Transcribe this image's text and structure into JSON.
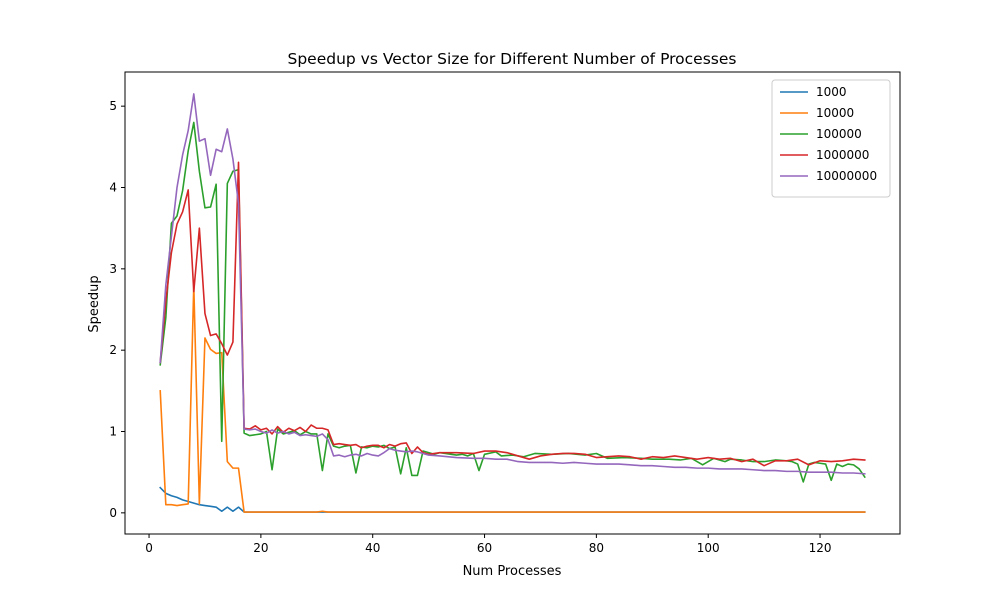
{
  "chart_data": {
    "type": "line",
    "title": "Speedup vs Vector Size for Different Number of Processes",
    "xlabel": "Num Processes",
    "ylabel": "Speedup",
    "xlim": [
      -4.3,
      134.3
    ],
    "ylim": [
      -0.26,
      5.42
    ],
    "xticks": [
      0,
      20,
      40,
      60,
      80,
      100,
      120
    ],
    "yticks": [
      0,
      1,
      2,
      3,
      4,
      5
    ],
    "grid": false,
    "legend_position": "top-right",
    "series": [
      {
        "name": "1000",
        "color": "#1f77b4",
        "points": [
          [
            2,
            0.31
          ],
          [
            3,
            0.24
          ],
          [
            4,
            0.21
          ],
          [
            5,
            0.19
          ],
          [
            6,
            0.16
          ],
          [
            7,
            0.14
          ],
          [
            8,
            0.12
          ],
          [
            9,
            0.1
          ],
          [
            10,
            0.09
          ],
          [
            11,
            0.08
          ],
          [
            12,
            0.07
          ],
          [
            13,
            0.02
          ],
          [
            14,
            0.07
          ],
          [
            15,
            0.02
          ],
          [
            16,
            0.07
          ],
          [
            17,
            0.01
          ],
          [
            18,
            0.01
          ],
          [
            128,
            0.01
          ]
        ]
      },
      {
        "name": "10000",
        "color": "#ff7f0e",
        "points": [
          [
            2,
            1.5
          ],
          [
            3,
            0.1
          ],
          [
            4,
            0.1
          ],
          [
            5,
            0.09
          ],
          [
            6,
            0.1
          ],
          [
            7,
            0.11
          ],
          [
            8,
            2.8
          ],
          [
            9,
            0.11
          ],
          [
            10,
            2.15
          ],
          [
            11,
            2.01
          ],
          [
            12,
            1.96
          ],
          [
            13,
            1.97
          ],
          [
            14,
            0.63
          ],
          [
            15,
            0.55
          ],
          [
            16,
            0.55
          ],
          [
            17,
            0.01
          ],
          [
            18,
            0.01
          ],
          [
            30,
            0.01
          ],
          [
            31,
            0.02
          ],
          [
            32,
            0.01
          ],
          [
            128,
            0.01
          ]
        ]
      },
      {
        "name": "100000",
        "color": "#2ca02c",
        "points": [
          [
            2,
            1.82
          ],
          [
            3,
            2.4
          ],
          [
            4,
            3.56
          ],
          [
            5,
            3.65
          ],
          [
            6,
            3.96
          ],
          [
            7,
            4.45
          ],
          [
            8,
            4.8
          ],
          [
            9,
            4.2
          ],
          [
            10,
            3.75
          ],
          [
            11,
            3.76
          ],
          [
            12,
            4.04
          ],
          [
            13,
            0.88
          ],
          [
            14,
            4.05
          ],
          [
            15,
            4.2
          ],
          [
            16,
            4.22
          ],
          [
            17,
            0.98
          ],
          [
            18,
            0.95
          ],
          [
            19,
            0.96
          ],
          [
            20,
            0.97
          ],
          [
            21,
            1.0
          ],
          [
            22,
            0.53
          ],
          [
            23,
            1.03
          ],
          [
            24,
            0.97
          ],
          [
            25,
            0.99
          ],
          [
            26,
            1.01
          ],
          [
            27,
            0.96
          ],
          [
            28,
            1.0
          ],
          [
            29,
            0.97
          ],
          [
            30,
            0.97
          ],
          [
            31,
            0.52
          ],
          [
            32,
            0.97
          ],
          [
            33,
            0.82
          ],
          [
            34,
            0.8
          ],
          [
            35,
            0.82
          ],
          [
            36,
            0.83
          ],
          [
            37,
            0.49
          ],
          [
            38,
            0.81
          ],
          [
            39,
            0.8
          ],
          [
            40,
            0.82
          ],
          [
            41,
            0.81
          ],
          [
            42,
            0.83
          ],
          [
            43,
            0.79
          ],
          [
            44,
            0.81
          ],
          [
            45,
            0.48
          ],
          [
            46,
            0.8
          ],
          [
            47,
            0.46
          ],
          [
            48,
            0.46
          ],
          [
            49,
            0.76
          ],
          [
            50,
            0.74
          ],
          [
            51,
            0.72
          ],
          [
            52,
            0.74
          ],
          [
            53,
            0.73
          ],
          [
            54,
            0.72
          ],
          [
            55,
            0.71
          ],
          [
            56,
            0.72
          ],
          [
            57,
            0.7
          ],
          [
            58,
            0.73
          ],
          [
            59,
            0.52
          ],
          [
            60,
            0.72
          ],
          [
            62,
            0.75
          ],
          [
            63,
            0.7
          ],
          [
            65,
            0.71
          ],
          [
            67,
            0.69
          ],
          [
            69,
            0.73
          ],
          [
            72,
            0.72
          ],
          [
            75,
            0.73
          ],
          [
            78,
            0.71
          ],
          [
            80,
            0.73
          ],
          [
            82,
            0.67
          ],
          [
            85,
            0.68
          ],
          [
            88,
            0.67
          ],
          [
            90,
            0.66
          ],
          [
            93,
            0.66
          ],
          [
            95,
            0.65
          ],
          [
            97,
            0.67
          ],
          [
            99,
            0.59
          ],
          [
            101,
            0.67
          ],
          [
            103,
            0.63
          ],
          [
            104,
            0.66
          ],
          [
            106,
            0.65
          ],
          [
            108,
            0.63
          ],
          [
            110,
            0.63
          ],
          [
            112,
            0.65
          ],
          [
            114,
            0.64
          ],
          [
            115,
            0.63
          ],
          [
            116,
            0.6
          ],
          [
            117,
            0.38
          ],
          [
            118,
            0.6
          ],
          [
            119,
            0.62
          ],
          [
            120,
            0.61
          ],
          [
            121,
            0.6
          ],
          [
            122,
            0.4
          ],
          [
            123,
            0.6
          ],
          [
            124,
            0.57
          ],
          [
            125,
            0.6
          ],
          [
            126,
            0.59
          ],
          [
            127,
            0.54
          ],
          [
            128,
            0.44
          ]
        ]
      },
      {
        "name": "1000000",
        "color": "#d62728",
        "points": [
          [
            2,
            1.85
          ],
          [
            3,
            2.6
          ],
          [
            4,
            3.2
          ],
          [
            5,
            3.55
          ],
          [
            6,
            3.7
          ],
          [
            7,
            3.97
          ],
          [
            8,
            2.72
          ],
          [
            9,
            3.5
          ],
          [
            10,
            2.45
          ],
          [
            11,
            2.18
          ],
          [
            12,
            2.2
          ],
          [
            13,
            2.08
          ],
          [
            14,
            1.94
          ],
          [
            15,
            2.1
          ],
          [
            16,
            4.31
          ],
          [
            17,
            1.04
          ],
          [
            18,
            1.03
          ],
          [
            19,
            1.07
          ],
          [
            20,
            1.02
          ],
          [
            21,
            1.04
          ],
          [
            22,
            0.97
          ],
          [
            23,
            1.06
          ],
          [
            24,
            0.99
          ],
          [
            25,
            1.04
          ],
          [
            26,
            1.01
          ],
          [
            27,
            1.05
          ],
          [
            28,
            1.0
          ],
          [
            29,
            1.08
          ],
          [
            30,
            1.04
          ],
          [
            31,
            1.04
          ],
          [
            32,
            1.02
          ],
          [
            33,
            0.84
          ],
          [
            34,
            0.85
          ],
          [
            35,
            0.84
          ],
          [
            36,
            0.83
          ],
          [
            37,
            0.84
          ],
          [
            38,
            0.8
          ],
          [
            39,
            0.82
          ],
          [
            40,
            0.83
          ],
          [
            41,
            0.83
          ],
          [
            42,
            0.8
          ],
          [
            43,
            0.84
          ],
          [
            44,
            0.82
          ],
          [
            45,
            0.85
          ],
          [
            46,
            0.86
          ],
          [
            47,
            0.73
          ],
          [
            48,
            0.81
          ],
          [
            49,
            0.74
          ],
          [
            50,
            0.72
          ],
          [
            52,
            0.74
          ],
          [
            55,
            0.74
          ],
          [
            58,
            0.73
          ],
          [
            60,
            0.76
          ],
          [
            62,
            0.76
          ],
          [
            64,
            0.74
          ],
          [
            66,
            0.7
          ],
          [
            68,
            0.66
          ],
          [
            70,
            0.7
          ],
          [
            72,
            0.72
          ],
          [
            74,
            0.73
          ],
          [
            76,
            0.73
          ],
          [
            78,
            0.72
          ],
          [
            80,
            0.68
          ],
          [
            82,
            0.69
          ],
          [
            84,
            0.7
          ],
          [
            86,
            0.69
          ],
          [
            88,
            0.66
          ],
          [
            90,
            0.69
          ],
          [
            92,
            0.68
          ],
          [
            94,
            0.7
          ],
          [
            96,
            0.68
          ],
          [
            98,
            0.66
          ],
          [
            100,
            0.68
          ],
          [
            102,
            0.66
          ],
          [
            104,
            0.67
          ],
          [
            106,
            0.63
          ],
          [
            108,
            0.66
          ],
          [
            110,
            0.58
          ],
          [
            112,
            0.64
          ],
          [
            114,
            0.64
          ],
          [
            116,
            0.66
          ],
          [
            118,
            0.59
          ],
          [
            120,
            0.64
          ],
          [
            122,
            0.63
          ],
          [
            124,
            0.64
          ],
          [
            126,
            0.66
          ],
          [
            128,
            0.65
          ]
        ]
      },
      {
        "name": "10000000",
        "color": "#9467bd",
        "points": [
          [
            2,
            1.85
          ],
          [
            3,
            2.8
          ],
          [
            4,
            3.4
          ],
          [
            5,
            4.0
          ],
          [
            6,
            4.4
          ],
          [
            7,
            4.7
          ],
          [
            8,
            5.15
          ],
          [
            9,
            4.57
          ],
          [
            10,
            4.6
          ],
          [
            11,
            4.15
          ],
          [
            12,
            4.47
          ],
          [
            13,
            4.44
          ],
          [
            14,
            4.72
          ],
          [
            15,
            4.35
          ],
          [
            16,
            3.8
          ],
          [
            17,
            1.03
          ],
          [
            18,
            1.02
          ],
          [
            19,
            1.03
          ],
          [
            20,
            1.0
          ],
          [
            21,
            0.98
          ],
          [
            22,
            1.02
          ],
          [
            23,
            0.98
          ],
          [
            24,
            1.0
          ],
          [
            25,
            0.97
          ],
          [
            26,
            0.99
          ],
          [
            27,
            0.95
          ],
          [
            28,
            0.96
          ],
          [
            29,
            0.95
          ],
          [
            30,
            0.94
          ],
          [
            31,
            0.97
          ],
          [
            32,
            0.9
          ],
          [
            33,
            0.7
          ],
          [
            34,
            0.71
          ],
          [
            35,
            0.69
          ],
          [
            36,
            0.71
          ],
          [
            37,
            0.72
          ],
          [
            38,
            0.7
          ],
          [
            39,
            0.73
          ],
          [
            40,
            0.71
          ],
          [
            41,
            0.7
          ],
          [
            42,
            0.74
          ],
          [
            43,
            0.79
          ],
          [
            44,
            0.77
          ],
          [
            45,
            0.76
          ],
          [
            46,
            0.75
          ],
          [
            47,
            0.76
          ],
          [
            48,
            0.75
          ],
          [
            49,
            0.73
          ],
          [
            50,
            0.71
          ],
          [
            52,
            0.7
          ],
          [
            55,
            0.68
          ],
          [
            58,
            0.67
          ],
          [
            60,
            0.67
          ],
          [
            62,
            0.66
          ],
          [
            64,
            0.66
          ],
          [
            66,
            0.63
          ],
          [
            68,
            0.62
          ],
          [
            70,
            0.62
          ],
          [
            72,
            0.62
          ],
          [
            74,
            0.61
          ],
          [
            76,
            0.62
          ],
          [
            78,
            0.61
          ],
          [
            80,
            0.6
          ],
          [
            82,
            0.6
          ],
          [
            84,
            0.6
          ],
          [
            86,
            0.59
          ],
          [
            88,
            0.58
          ],
          [
            90,
            0.58
          ],
          [
            92,
            0.57
          ],
          [
            94,
            0.56
          ],
          [
            96,
            0.56
          ],
          [
            98,
            0.55
          ],
          [
            100,
            0.55
          ],
          [
            102,
            0.54
          ],
          [
            104,
            0.54
          ],
          [
            106,
            0.54
          ],
          [
            108,
            0.53
          ],
          [
            110,
            0.52
          ],
          [
            112,
            0.52
          ],
          [
            114,
            0.51
          ],
          [
            116,
            0.51
          ],
          [
            118,
            0.5
          ],
          [
            120,
            0.5
          ],
          [
            122,
            0.5
          ],
          [
            124,
            0.49
          ],
          [
            126,
            0.49
          ],
          [
            128,
            0.48
          ]
        ]
      }
    ]
  }
}
